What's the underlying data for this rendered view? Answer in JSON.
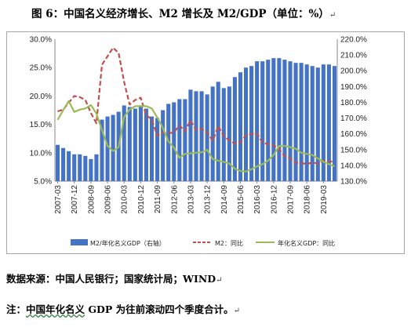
{
  "title": "图 6：中国名义经济增长、M2 增长及 M2/GDP（单位：%）",
  "source": "数据来源：中国人民银行；国家统计局；WIND",
  "note_prefix": "注：",
  "note_underlined": "中国年化名义",
  "note_rest": " GDP 为往前滚动四个季度合计。",
  "paragraph_mark": "↵",
  "chart_data": {
    "type": "bar",
    "categories": [
      "2007-03",
      "2007-06",
      "2007-09",
      "2007-12",
      "2008-03",
      "2008-06",
      "2008-09",
      "2008-12",
      "2009-03",
      "2009-06",
      "2009-09",
      "2009-12",
      "2010-03",
      "2010-06",
      "2010-09",
      "2010-12",
      "2011-03",
      "2011-06",
      "2011-09",
      "2011-12",
      "2012-03",
      "2012-06",
      "2012-09",
      "2012-12",
      "2013-03",
      "2013-06",
      "2013-09",
      "2013-12",
      "2014-03",
      "2014-06",
      "2014-09",
      "2014-12",
      "2015-03",
      "2015-06",
      "2015-09",
      "2015-12",
      "2016-03",
      "2016-06",
      "2016-09",
      "2016-12",
      "2017-03",
      "2017-06",
      "2017-09",
      "2017-12",
      "2018-03",
      "2018-06",
      "2018-09",
      "2018-12",
      "2019-03",
      "2019-06",
      "2019-09"
    ],
    "tick_labels": [
      "2007-03",
      "2007-12",
      "2008-09",
      "2009-06",
      "2010-03",
      "2010-12",
      "2011-09",
      "2012-06",
      "2013-03",
      "2013-12",
      "2014-09",
      "2015-06",
      "2016-03",
      "2016-12",
      "2017-09",
      "2018-06",
      "2019-03"
    ],
    "series": [
      {
        "name": "M2/年化名义GDP（右轴）",
        "axis": "right",
        "type": "bar",
        "color": "#4472c4",
        "values": [
          153,
          151,
          149,
          147,
          147,
          146,
          144,
          147,
          169,
          171,
          172,
          174,
          178,
          177,
          176,
          177,
          176,
          171,
          170,
          175,
          179,
          180,
          182,
          182,
          188,
          187,
          187,
          185,
          190,
          193,
          189,
          190,
          196,
          199,
          202,
          203,
          206,
          206,
          207,
          208,
          208,
          207,
          206,
          205,
          205,
          204,
          203,
          202,
          204,
          204,
          203
        ]
      },
      {
        "name": "M2：同比",
        "axis": "left",
        "type": "line",
        "style": "dashed",
        "color": "#c0504d",
        "values": [
          17.3,
          17.6,
          18.8,
          20.0,
          19.8,
          19.3,
          17.0,
          15.2,
          25.5,
          27.0,
          28.5,
          27.6,
          22.5,
          18.5,
          19.3,
          19.7,
          16.6,
          15.9,
          13.0,
          13.6,
          13.4,
          13.6,
          14.8,
          13.8,
          15.7,
          14.0,
          14.2,
          13.6,
          12.1,
          14.7,
          12.9,
          12.2,
          11.6,
          11.8,
          13.1,
          13.3,
          13.4,
          11.8,
          11.5,
          11.3,
          10.6,
          9.4,
          9.0,
          8.2,
          8.2,
          8.0,
          8.3,
          8.1,
          8.6,
          8.5,
          8.4
        ]
      },
      {
        "name": "年化名义GDP：同比",
        "axis": "left",
        "type": "line",
        "style": "solid",
        "color": "#9bbb59",
        "values": [
          15.8,
          17.5,
          19.1,
          17.2,
          17.6,
          17.8,
          18.4,
          16.9,
          14.0,
          11.2,
          10.3,
          11.0,
          16.3,
          17.6,
          18.2,
          18.2,
          18.2,
          17.8,
          16.2,
          14.4,
          12.0,
          10.9,
          9.1,
          9.8,
          9.9,
          10.0,
          10.1,
          10.5,
          8.9,
          8.6,
          8.4,
          8.1,
          7.2,
          6.8,
          6.7,
          7.1,
          7.6,
          8.0,
          8.6,
          9.6,
          11.2,
          11.2,
          11.0,
          10.7,
          10.0,
          9.8,
          9.6,
          9.0,
          8.4,
          8.0,
          7.6
        ]
      }
    ],
    "ylim_left": [
      5,
      30
    ],
    "yticks_left": [
      "5.0%",
      "10.0%",
      "15.0%",
      "20.0%",
      "25.0%",
      "30.0%"
    ],
    "ylim_right": [
      130,
      220
    ],
    "yticks_right": [
      "130.0%",
      "140.0%",
      "150.0%",
      "160.0%",
      "170.0%",
      "180.0%",
      "190.0%",
      "200.0%",
      "210.0%",
      "220.0%"
    ],
    "grid": false,
    "legend_placement": "bottom"
  }
}
